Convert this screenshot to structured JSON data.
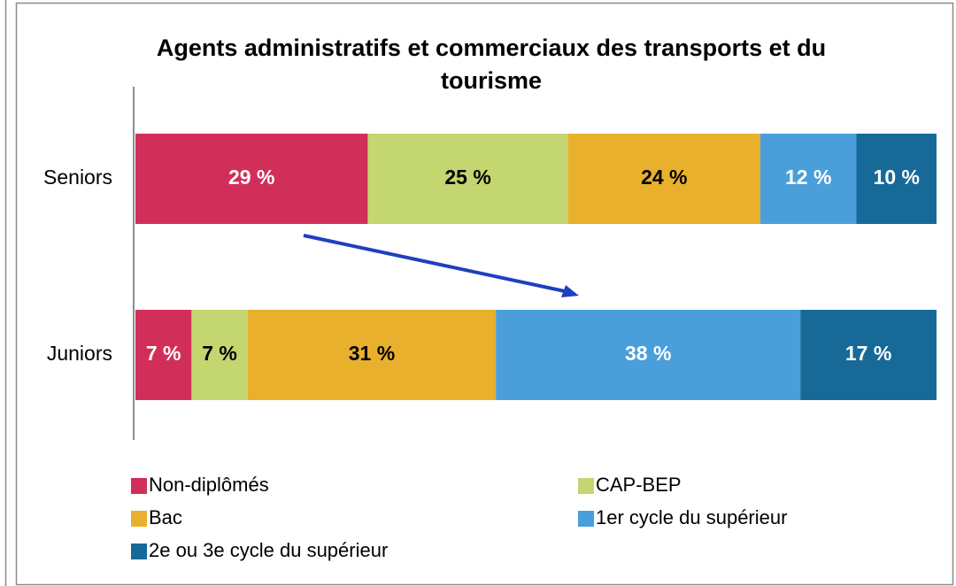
{
  "chart_data": {
    "type": "stacked_barh",
    "title": "Agents administratifs et commerciaux des transports et du tourisme",
    "categories": [
      "Seniors",
      "Juniors"
    ],
    "xlim": [
      0,
      100
    ],
    "series": [
      {
        "name": "Non-diplômés",
        "color": "#d12f5a",
        "label_color": "#ffffff",
        "values": [
          29,
          7
        ],
        "value_labels": [
          "29 %",
          "7 %"
        ]
      },
      {
        "name": "CAP-BEP",
        "color": "#c3d66f",
        "label_color": "#000000",
        "values": [
          25,
          7
        ],
        "value_labels": [
          "25 %",
          "7 %"
        ]
      },
      {
        "name": "Bac",
        "color": "#e8b02c",
        "label_color": "#000000",
        "values": [
          24,
          31
        ],
        "value_labels": [
          "24 %",
          "31 %"
        ]
      },
      {
        "name": "1er cycle du supérieur",
        "color": "#4a9fdb",
        "label_color": "#ffffff",
        "values": [
          12,
          38
        ],
        "value_labels": [
          "12 %",
          "38 %"
        ]
      },
      {
        "name": "2e ou 3e cycle du supérieur",
        "color": "#176a98",
        "label_color": "#ffffff",
        "values": [
          10,
          17
        ],
        "value_labels": [
          "10 %",
          "17 %"
        ]
      }
    ]
  }
}
